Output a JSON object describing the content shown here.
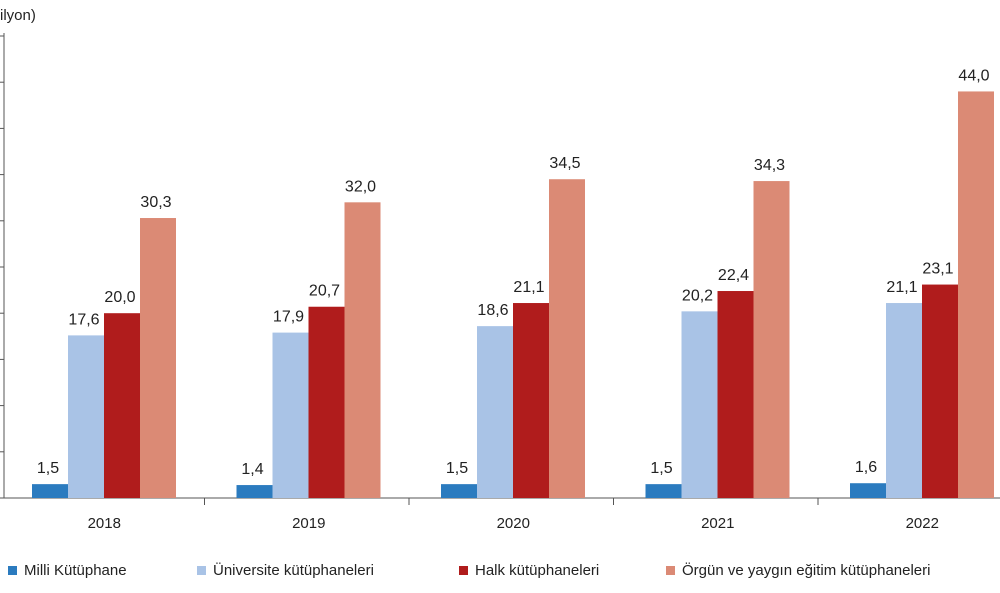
{
  "chart_data": {
    "type": "bar",
    "ylabel": "ilyon)",
    "categories": [
      "2018",
      "2019",
      "2020",
      "2021",
      "2022"
    ],
    "series": [
      {
        "name": "Milli Kütüphane",
        "color": "#2b7bbf",
        "values": [
          1.5,
          1.4,
          1.5,
          1.5,
          1.6
        ],
        "labels": [
          "1,5",
          "1,4",
          "1,5",
          "1,5",
          "1,6"
        ]
      },
      {
        "name": "Üniversite kütüphaneleri",
        "color": "#a9c3e6",
        "values": [
          17.6,
          17.9,
          18.6,
          20.2,
          21.1
        ],
        "labels": [
          "17,6",
          "17,9",
          "18,6",
          "20,2",
          "21,1"
        ]
      },
      {
        "name": "Halk kütüphaneleri",
        "color": "#b01c1c",
        "values": [
          20.0,
          20.7,
          21.1,
          22.4,
          23.1
        ],
        "labels": [
          "20,0",
          "20,7",
          "21,1",
          "22,4",
          "23,1"
        ]
      },
      {
        "name": "Örgün ve yaygın eğitim kütüphaneleri",
        "color": "#db8a75",
        "values": [
          30.3,
          32.0,
          34.5,
          34.3,
          44.0
        ],
        "labels": [
          "30,3",
          "32,0",
          "34,5",
          "34,3",
          "44,0"
        ]
      }
    ],
    "ylim": [
      0,
      50
    ],
    "ytick_step": 5,
    "grid": false,
    "legend": "bottom"
  }
}
